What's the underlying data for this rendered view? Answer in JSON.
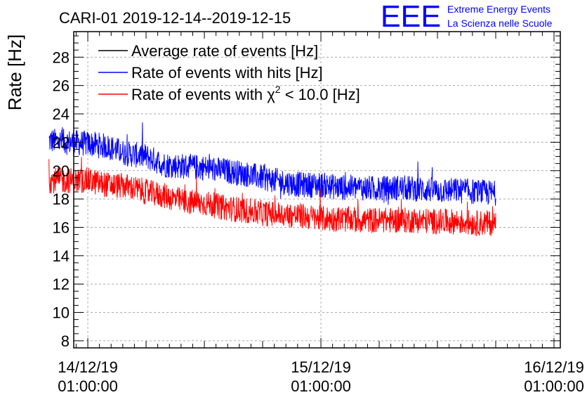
{
  "chart_data": {
    "type": "line",
    "title": "CARI-01 2019-12-14--2019-12-15",
    "ylabel": "Rate [Hz]",
    "xlabel": "",
    "ylim": [
      7.5,
      29.8
    ],
    "yticks": [
      "8",
      "10",
      "12",
      "14",
      "16",
      "18",
      "20",
      "22",
      "24",
      "26",
      "28"
    ],
    "x_unit": "hours since 14/12/19 00:00",
    "xlim": [
      -0.45,
      49.65
    ],
    "xticks": [
      {
        "hour": 1,
        "date": "14/12/19",
        "time": "01:00:00"
      },
      {
        "hour": 25,
        "date": "15/12/19",
        "time": "01:00:00"
      },
      {
        "hour": 49,
        "date": "16/12/19",
        "time": "01:00:00"
      }
    ],
    "grid": true,
    "legend_position": "top-left",
    "series": [
      {
        "name": "Average rate of events [Hz]",
        "legend_main": "Average rate of events [Hz]",
        "color": "#000000",
        "points": []
      },
      {
        "name": "Rate of events with hits [Hz]",
        "legend_main": "Rate of events with hits [Hz]",
        "color": "#0000ff",
        "points": [
          [
            -3.0,
            22.1
          ],
          [
            -1.0,
            22.0
          ],
          [
            1.0,
            21.9
          ],
          [
            3.0,
            21.7
          ],
          [
            5.0,
            21.2
          ],
          [
            7.0,
            21.0
          ],
          [
            9.0,
            20.4
          ],
          [
            11.0,
            20.3
          ],
          [
            13.0,
            20.2
          ],
          [
            15.0,
            20.0
          ],
          [
            17.0,
            19.8
          ],
          [
            19.0,
            19.5
          ],
          [
            21.0,
            19.2
          ],
          [
            23.0,
            19.0
          ],
          [
            25.0,
            19.0
          ],
          [
            27.0,
            18.8
          ],
          [
            29.0,
            18.8
          ],
          [
            31.0,
            18.7
          ],
          [
            33.0,
            18.8
          ],
          [
            35.0,
            18.7
          ],
          [
            37.0,
            18.6
          ],
          [
            39.0,
            18.6
          ],
          [
            41.0,
            18.5
          ],
          [
            43.0,
            18.4
          ]
        ]
      },
      {
        "name": "Rate of events with χ² < 10.0 [Hz]",
        "legend_pre": "Rate of events with ",
        "legend_sym": "χ",
        "legend_sup": "2",
        "legend_post": " < 10.0 [Hz]",
        "color": "#ff0000",
        "points": [
          [
            -3.0,
            19.3
          ],
          [
            -1.0,
            19.3
          ],
          [
            1.0,
            19.3
          ],
          [
            3.0,
            19.0
          ],
          [
            5.0,
            18.9
          ],
          [
            7.0,
            18.5
          ],
          [
            9.0,
            18.2
          ],
          [
            11.0,
            17.8
          ],
          [
            13.0,
            17.7
          ],
          [
            15.0,
            17.4
          ],
          [
            17.0,
            17.2
          ],
          [
            19.0,
            17.0
          ],
          [
            21.0,
            16.9
          ],
          [
            23.0,
            16.8
          ],
          [
            25.0,
            16.6
          ],
          [
            27.0,
            16.6
          ],
          [
            29.0,
            16.5
          ],
          [
            31.0,
            16.5
          ],
          [
            33.0,
            16.5
          ],
          [
            35.0,
            16.5
          ],
          [
            37.0,
            16.4
          ],
          [
            39.0,
            16.4
          ],
          [
            41.0,
            16.3
          ],
          [
            43.0,
            16.3
          ]
        ]
      }
    ]
  },
  "logo": {
    "letters": "EEE",
    "line1": "Extreme Energy Events",
    "line2": "La Scienza nelle Scuole",
    "color": "#0000ff"
  }
}
